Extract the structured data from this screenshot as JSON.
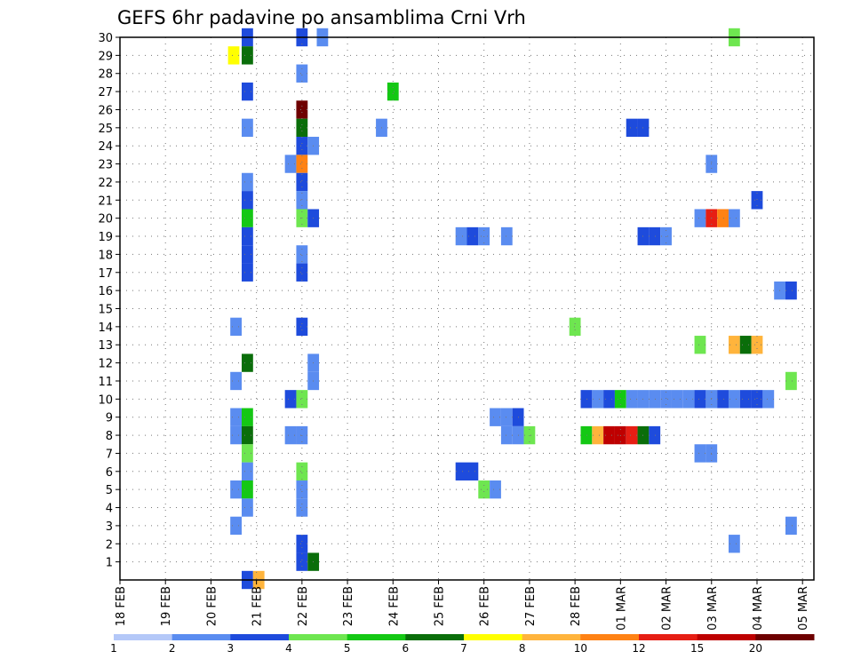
{
  "chart_data": {
    "type": "heatmap",
    "title": "GEFS 6hr padavine po ansamblima Crni Vrh",
    "xlabel": "",
    "ylabel": "",
    "x_tick_labels": [
      "18 FEB",
      "19 FEB",
      "20 FEB",
      "21 FEB",
      "22 FEB",
      "23 FEB",
      "24 FEB",
      "25 FEB",
      "26 FEB",
      "27 FEB",
      "28 FEB",
      "01 MAR",
      "02 MAR",
      "03 MAR",
      "04 MAR",
      "05 MAR"
    ],
    "y_tick_labels": [
      "1",
      "2",
      "3",
      "4",
      "5",
      "6",
      "7",
      "8",
      "9",
      "10",
      "11",
      "12",
      "13",
      "14",
      "15",
      "16",
      "17",
      "18",
      "19",
      "20",
      "21",
      "22",
      "23",
      "24",
      "25",
      "26",
      "27",
      "28",
      "29",
      "30"
    ],
    "x_range_days": [
      0,
      15.25
    ],
    "y_range_members": [
      0,
      30
    ],
    "grid": true,
    "legend_placement": "bottom",
    "legend_labels": [
      "1",
      "2",
      "3",
      "4",
      "5",
      "6",
      "7",
      "8",
      "10",
      "12",
      "15",
      "20"
    ],
    "legend_colors": [
      "#b4c8f8",
      "#5a8cf0",
      "#1e4bdc",
      "#6ee650",
      "#14c814",
      "#0a6e0a",
      "#ffff00",
      "#ffb43c",
      "#ff8214",
      "#e61e14",
      "#be0000",
      "#6e0000"
    ],
    "cells": [
      [
        2.8,
        30,
        2
      ],
      [
        2.5,
        29,
        6
      ],
      [
        2.8,
        29,
        5
      ],
      [
        2.8,
        27,
        2
      ],
      [
        2.8,
        25,
        1
      ],
      [
        2.8,
        22,
        1
      ],
      [
        2.8,
        21,
        2
      ],
      [
        2.8,
        20,
        4
      ],
      [
        2.8,
        19,
        2
      ],
      [
        2.8,
        18,
        2
      ],
      [
        2.8,
        17,
        2
      ],
      [
        2.55,
        14,
        1
      ],
      [
        2.8,
        12,
        5
      ],
      [
        2.55,
        11,
        1
      ],
      [
        2.55,
        9,
        1
      ],
      [
        2.8,
        9,
        4
      ],
      [
        2.55,
        8,
        1
      ],
      [
        2.8,
        8,
        5
      ],
      [
        2.8,
        7,
        3
      ],
      [
        2.8,
        6,
        1
      ],
      [
        2.55,
        5,
        1
      ],
      [
        2.8,
        5,
        4
      ],
      [
        2.8,
        4,
        1
      ],
      [
        2.55,
        3,
        1
      ],
      [
        2.8,
        0,
        2
      ],
      [
        3.05,
        0,
        7
      ],
      [
        4.0,
        30,
        2
      ],
      [
        4.45,
        30,
        1
      ],
      [
        4.0,
        28,
        1
      ],
      [
        4.0,
        26,
        11
      ],
      [
        4.0,
        25,
        5
      ],
      [
        4.0,
        24,
        2
      ],
      [
        4.25,
        24,
        1
      ],
      [
        3.75,
        23,
        1
      ],
      [
        4.0,
        23,
        8
      ],
      [
        4.0,
        22,
        2
      ],
      [
        4.0,
        21,
        1
      ],
      [
        4.0,
        20,
        3
      ],
      [
        4.25,
        20,
        2
      ],
      [
        4.0,
        18,
        1
      ],
      [
        4.0,
        17,
        2
      ],
      [
        4.0,
        14,
        2
      ],
      [
        4.25,
        12,
        1
      ],
      [
        4.25,
        11,
        1
      ],
      [
        3.75,
        10,
        2
      ],
      [
        4.0,
        10,
        3
      ],
      [
        3.75,
        8,
        1
      ],
      [
        4.0,
        8,
        1
      ],
      [
        4.0,
        6,
        3
      ],
      [
        4.0,
        5,
        1
      ],
      [
        4.0,
        4,
        1
      ],
      [
        4.0,
        2,
        2
      ],
      [
        4.0,
        1,
        2
      ],
      [
        4.25,
        1,
        5
      ],
      [
        5.75,
        25,
        1
      ],
      [
        6.0,
        27,
        4
      ],
      [
        7.5,
        19,
        1
      ],
      [
        7.75,
        19,
        2
      ],
      [
        8.0,
        19,
        1
      ],
      [
        8.5,
        19,
        1
      ],
      [
        8.25,
        9,
        1
      ],
      [
        8.5,
        9,
        1
      ],
      [
        8.75,
        9,
        2
      ],
      [
        8.5,
        8,
        1
      ],
      [
        8.75,
        8,
        1
      ],
      [
        9.0,
        8,
        3
      ],
      [
        7.5,
        6,
        2
      ],
      [
        7.75,
        6,
        2
      ],
      [
        8.0,
        5,
        3
      ],
      [
        8.25,
        5,
        1
      ],
      [
        10.0,
        14,
        3
      ],
      [
        10.25,
        10,
        2
      ],
      [
        10.5,
        10,
        1
      ],
      [
        10.75,
        10,
        2
      ],
      [
        11.0,
        10,
        4
      ],
      [
        10.25,
        8,
        4
      ],
      [
        10.5,
        8,
        7
      ],
      [
        10.75,
        8,
        10
      ],
      [
        11.0,
        8,
        10
      ],
      [
        11.25,
        8,
        9
      ],
      [
        11.5,
        8,
        5
      ],
      [
        11.75,
        8,
        2
      ],
      [
        11.25,
        25,
        2
      ],
      [
        11.5,
        25,
        2
      ],
      [
        11.5,
        19,
        2
      ],
      [
        11.75,
        19,
        2
      ],
      [
        12.0,
        19,
        1
      ],
      [
        11.25,
        10,
        1
      ],
      [
        11.5,
        10,
        1
      ],
      [
        11.75,
        10,
        1
      ],
      [
        12.0,
        10,
        1
      ],
      [
        12.25,
        10,
        1
      ],
      [
        12.5,
        10,
        1
      ],
      [
        12.75,
        10,
        2
      ],
      [
        13.0,
        10,
        1
      ],
      [
        13.25,
        10,
        2
      ],
      [
        13.5,
        10,
        1
      ],
      [
        13.75,
        10,
        2
      ],
      [
        14.0,
        10,
        2
      ],
      [
        14.25,
        10,
        1
      ],
      [
        12.75,
        13,
        3
      ],
      [
        12.75,
        7,
        1
      ],
      [
        13.0,
        7,
        1
      ],
      [
        13.0,
        23,
        1
      ],
      [
        12.75,
        20,
        1
      ],
      [
        13.0,
        20,
        9
      ],
      [
        13.25,
        20,
        8
      ],
      [
        13.5,
        20,
        1
      ],
      [
        13.5,
        30,
        3
      ],
      [
        13.5,
        2,
        1
      ],
      [
        14.0,
        21,
        2
      ],
      [
        13.5,
        13,
        7
      ],
      [
        13.75,
        13,
        5
      ],
      [
        14.0,
        13,
        7
      ],
      [
        14.5,
        16,
        1
      ],
      [
        14.75,
        16,
        2
      ],
      [
        14.75,
        11,
        3
      ],
      [
        14.75,
        3,
        1
      ]
    ]
  }
}
